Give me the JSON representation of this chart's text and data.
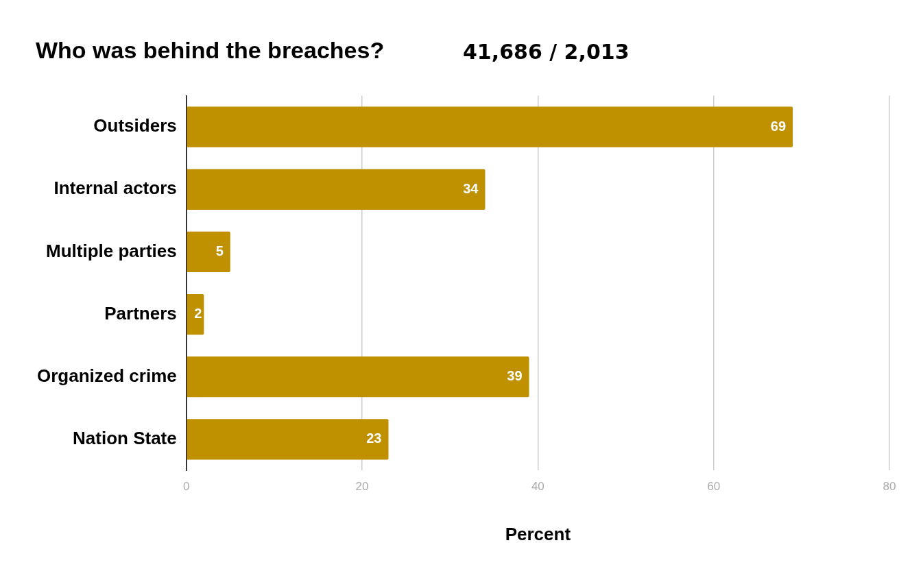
{
  "chart_data": {
    "type": "bar",
    "orientation": "horizontal",
    "title": "Who was behind the breaches?",
    "subtitle": "41,686 / 2,013",
    "xlabel": "Percent",
    "categories": [
      "Outsiders",
      "Internal actors",
      "Multiple parties",
      "Partners",
      "Organized crime",
      "Nation State"
    ],
    "values": [
      69,
      34,
      5,
      2,
      39,
      23
    ],
    "color": "#bf9000",
    "xlim": [
      0,
      80
    ],
    "xticks": [
      0,
      20,
      40,
      60,
      80
    ],
    "grid": "x",
    "data_labels": true,
    "legend": false
  }
}
